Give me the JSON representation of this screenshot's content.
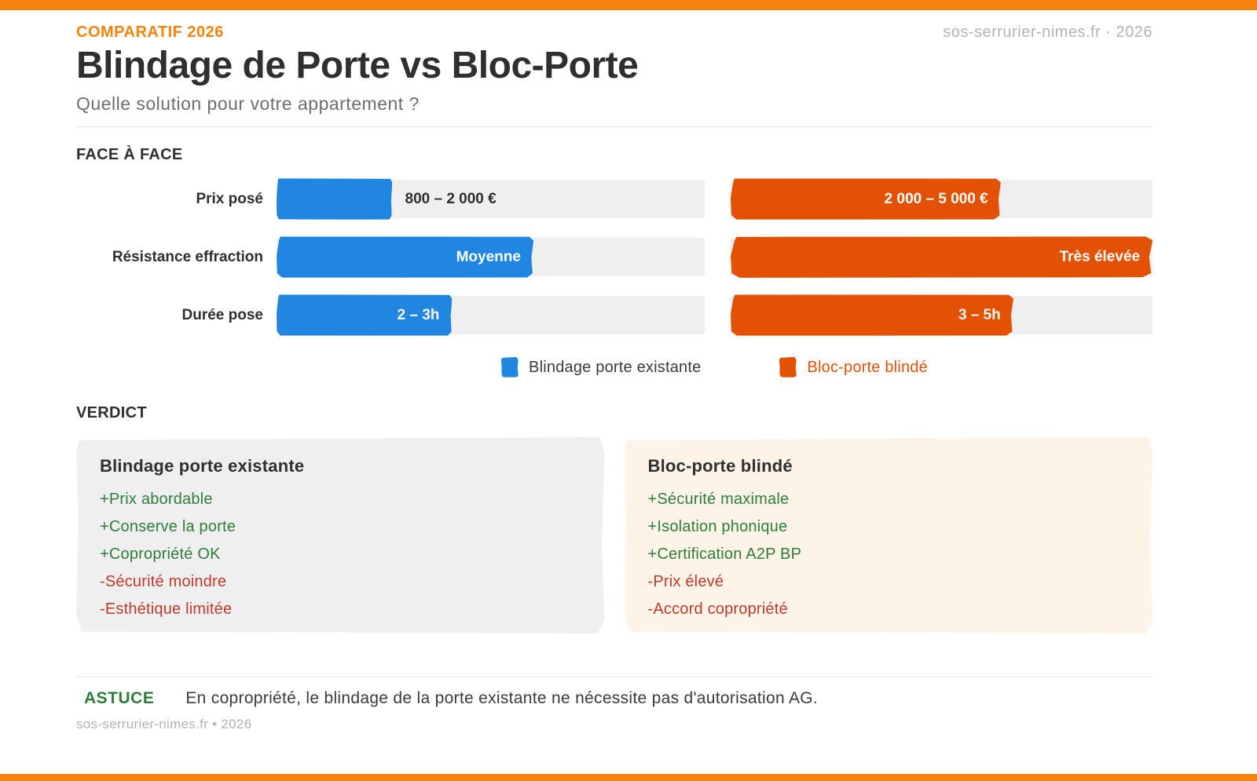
{
  "header": {
    "kicker": "COMPARATIF 2026",
    "title": "Blindage de Porte vs Bloc-Porte",
    "subtitle": "Quelle solution pour votre appartement ?",
    "site_credit": "sos-serrurier-nimes.fr · 2026"
  },
  "colors": {
    "accent_orange": "#F5830B",
    "bar_orange": "#E25104",
    "bar_blue": "#2186E0",
    "track_gray": "#EFEFF0",
    "pro_green": "#2E7D3A",
    "con_red": "#C0392B",
    "card_gray": "#EFEFF0",
    "card_cream": "#FDF3E6"
  },
  "chart_data": {
    "type": "bar",
    "section_title": "FACE À FACE",
    "orientation": "horizontal",
    "categories": [
      "Prix posé",
      "Résistance effraction",
      "Durée pose"
    ],
    "series": [
      {
        "name": "Blindage porte existante",
        "color": "#2186E0",
        "values_pct": [
          27,
          60,
          41
        ],
        "value_labels": [
          "800 – 2 000 €",
          "Moyenne",
          "2 – 3h"
        ]
      },
      {
        "name": "Bloc-porte blindé",
        "color": "#E25104",
        "values_pct": [
          64,
          100,
          67
        ],
        "value_labels": [
          "2 000 – 5 000 €",
          "Très élevée",
          "3 – 5h"
        ]
      }
    ],
    "legend_position": "bottom",
    "grid": false,
    "xlim_pct": [
      0,
      100
    ]
  },
  "verdict": {
    "heading": "VERDICT",
    "cards": [
      {
        "title": "Blindage porte existante",
        "items": [
          "+Prix abordable",
          "+Conserve la porte",
          "+Copropriété OK",
          "-Sécurité moindre",
          "-Esthétique limitée"
        ]
      },
      {
        "title": "Bloc-porte blindé",
        "items": [
          "+Sécurité maximale",
          "+Isolation phonique",
          "+Certification A2P BP",
          "-Prix élevé",
          "-Accord copropriété"
        ]
      }
    ]
  },
  "footer": {
    "tip_label": "ASTUCE",
    "tip_text": "En copropriété, le blindage de la porte existante ne nécessite pas d'autorisation AG.",
    "credit": "sos-serrurier-nimes.fr • 2026"
  }
}
